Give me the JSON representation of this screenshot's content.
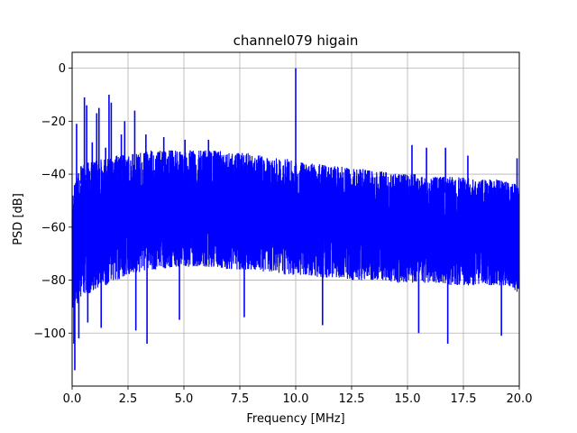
{
  "chart_data": {
    "type": "line",
    "title": "channel079 higain",
    "xlabel": "Frequency [MHz]",
    "ylabel": "PSD [dB]",
    "xlim": [
      0,
      20
    ],
    "ylim": [
      -120,
      6
    ],
    "x_ticks": [
      0,
      2.5,
      5,
      7.5,
      10,
      12.5,
      15,
      17.5,
      20
    ],
    "x_tick_labels": [
      "0.0",
      "2.5",
      "5.0",
      "7.5",
      "10.0",
      "12.5",
      "15.0",
      "17.5",
      "20.0"
    ],
    "y_ticks": [
      0,
      -20,
      -40,
      -60,
      -80,
      -100
    ],
    "y_tick_labels": [
      "0",
      "−20",
      "−40",
      "−60",
      "−80",
      "−100"
    ],
    "grid": true,
    "series": [
      {
        "color": "#0000ff",
        "envelope": {
          "x": [
            0,
            0.5,
            1,
            1.5,
            2,
            2.5,
            3,
            3.5,
            4,
            4.5,
            5,
            5.5,
            6,
            6.5,
            7,
            7.5,
            8,
            8.5,
            9,
            9.5,
            10,
            10.5,
            11,
            11.5,
            12,
            12.5,
            13,
            13.5,
            14,
            14.5,
            15,
            15.5,
            16,
            16.5,
            17,
            17.5,
            18,
            18.5,
            19,
            19.5,
            20
          ],
          "upper": [
            -44,
            -36,
            -35,
            -34,
            -33,
            -32,
            -32,
            -31,
            -31,
            -31,
            -31,
            -31,
            -31,
            -31,
            -32,
            -32,
            -32,
            -33,
            -34,
            -34,
            -35,
            -36,
            -36,
            -37,
            -37,
            -38,
            -38,
            -39,
            -39,
            -40,
            -40,
            -40,
            -41,
            -41,
            -41,
            -41,
            -42,
            -42,
            -42,
            -43,
            -44
          ],
          "lower": [
            -92,
            -86,
            -84,
            -82,
            -80,
            -78,
            -77,
            -76,
            -76,
            -75,
            -75,
            -75,
            -75,
            -75,
            -76,
            -76,
            -76,
            -77,
            -77,
            -78,
            -78,
            -78,
            -79,
            -79,
            -79,
            -80,
            -80,
            -80,
            -80,
            -81,
            -81,
            -81,
            -81,
            -81,
            -82,
            -82,
            -82,
            -82,
            -82,
            -82,
            -85
          ]
        },
        "peaks": [
          {
            "x": 0.2,
            "y": -21
          },
          {
            "x": 0.4,
            "y": -37
          },
          {
            "x": 0.55,
            "y": -11
          },
          {
            "x": 0.65,
            "y": -14
          },
          {
            "x": 0.9,
            "y": -28
          },
          {
            "x": 1.1,
            "y": -17
          },
          {
            "x": 1.2,
            "y": -15
          },
          {
            "x": 1.5,
            "y": -30
          },
          {
            "x": 1.65,
            "y": -10
          },
          {
            "x": 1.75,
            "y": -13
          },
          {
            "x": 2.2,
            "y": -25
          },
          {
            "x": 2.35,
            "y": -20
          },
          {
            "x": 2.8,
            "y": -16
          },
          {
            "x": 3.3,
            "y": -25
          },
          {
            "x": 4.1,
            "y": -26
          },
          {
            "x": 5.05,
            "y": -27
          },
          {
            "x": 6.1,
            "y": -27
          },
          {
            "x": 10.0,
            "y": 0
          },
          {
            "x": 15.2,
            "y": -29
          },
          {
            "x": 15.85,
            "y": -30
          },
          {
            "x": 16.7,
            "y": -30
          },
          {
            "x": 17.7,
            "y": -33
          },
          {
            "x": 19.9,
            "y": -34
          }
        ],
        "troughs": [
          {
            "x": 0.08,
            "y": -104
          },
          {
            "x": 0.12,
            "y": -114
          },
          {
            "x": 0.3,
            "y": -102
          },
          {
            "x": 0.7,
            "y": -96
          },
          {
            "x": 1.3,
            "y": -98
          },
          {
            "x": 2.85,
            "y": -99
          },
          {
            "x": 3.35,
            "y": -104
          },
          {
            "x": 4.8,
            "y": -95
          },
          {
            "x": 7.7,
            "y": -94
          },
          {
            "x": 11.2,
            "y": -97
          },
          {
            "x": 15.5,
            "y": -100
          },
          {
            "x": 16.8,
            "y": -104
          },
          {
            "x": 19.2,
            "y": -101
          }
        ]
      }
    ]
  }
}
